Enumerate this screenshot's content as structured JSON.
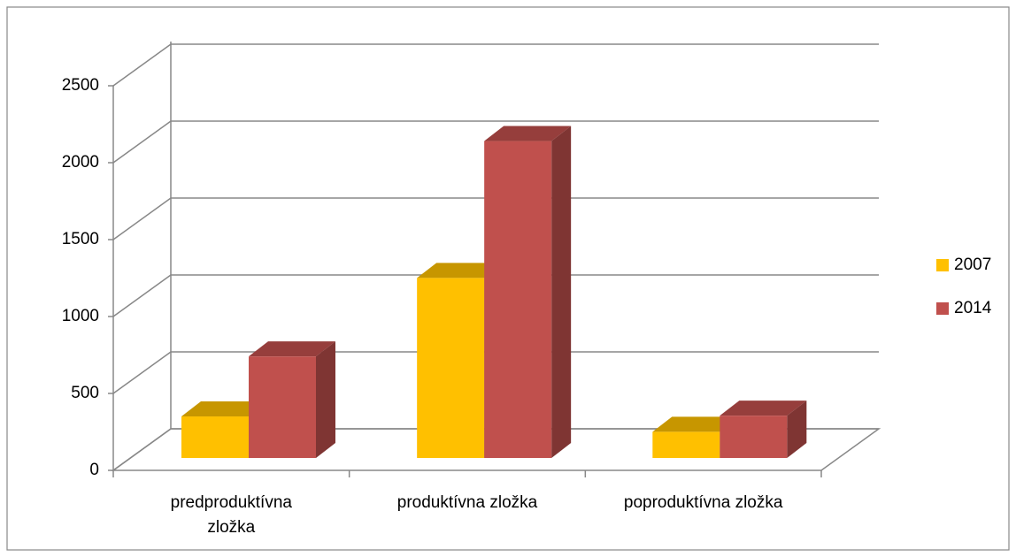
{
  "chart_data": {
    "type": "bar3d",
    "categories": [
      "predproduktívna zložka",
      "produktívna zložka",
      "poproduktívna zložka"
    ],
    "series": [
      {
        "name": "2007",
        "color": "#FFC000",
        "values": [
          270,
          1170,
          170
        ]
      },
      {
        "name": "2014",
        "color": "#C0504D",
        "values": [
          660,
          2060,
          275
        ]
      }
    ],
    "ylim": [
      0,
      2500
    ],
    "yticks": [
      0,
      500,
      1000,
      1500,
      2000,
      2500
    ],
    "grid": true,
    "legend": "right"
  }
}
